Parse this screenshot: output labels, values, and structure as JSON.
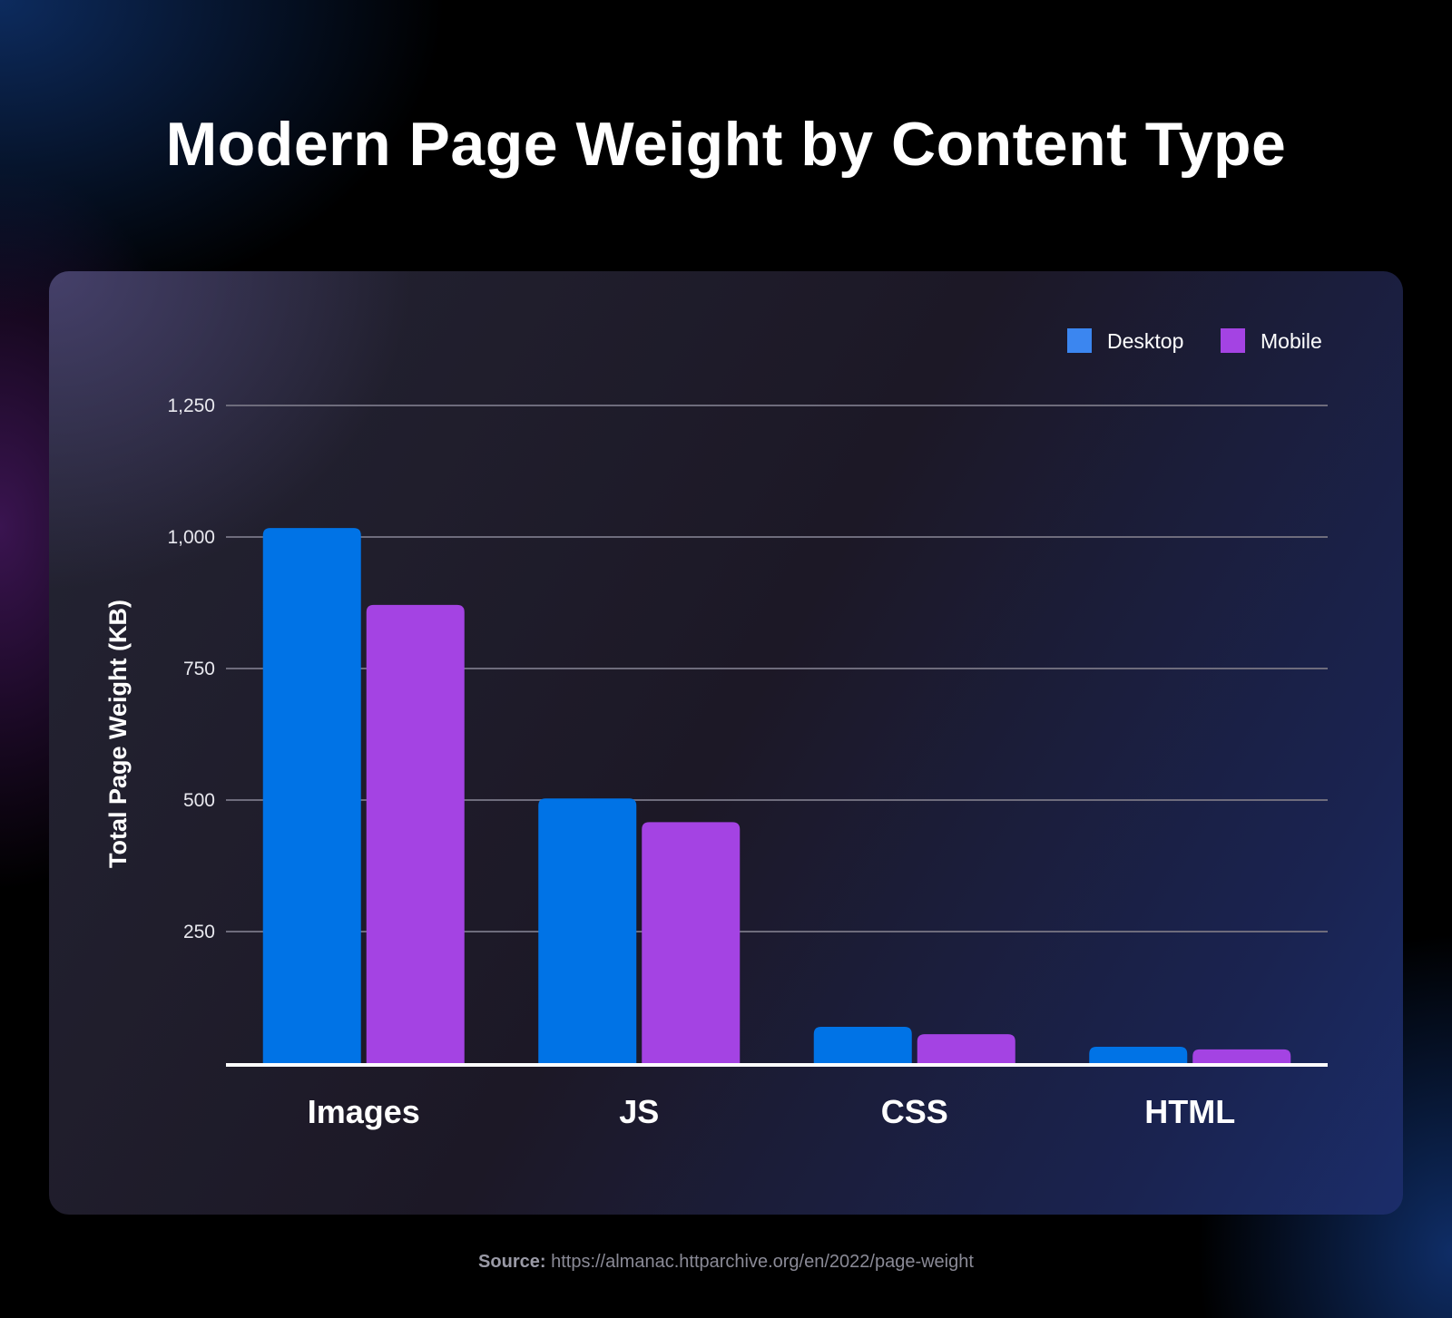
{
  "chart_data": {
    "type": "bar",
    "title": "Modern Page Weight by Content Type",
    "xlabel": "",
    "ylabel": "Total Page Weight (KB)",
    "ylim": [
      0,
      1250
    ],
    "yticks": [
      250,
      500,
      750,
      1000,
      1250
    ],
    "ytick_labels": [
      "250",
      "500",
      "750",
      "1,000",
      "1,250"
    ],
    "categories": [
      "Images",
      "JS",
      "CSS",
      "HTML"
    ],
    "series": [
      {
        "name": "Desktop",
        "color": "#0073e6",
        "values": [
          1017,
          503,
          69,
          31
        ]
      },
      {
        "name": "Mobile",
        "color": "#a443e3",
        "values": [
          871,
          458,
          55,
          26
        ]
      }
    ],
    "legend_position": "top-right",
    "grid": true
  },
  "source": {
    "label": "Source:",
    "url": "https://almanac.httparchive.org/en/2022/page-weight"
  }
}
